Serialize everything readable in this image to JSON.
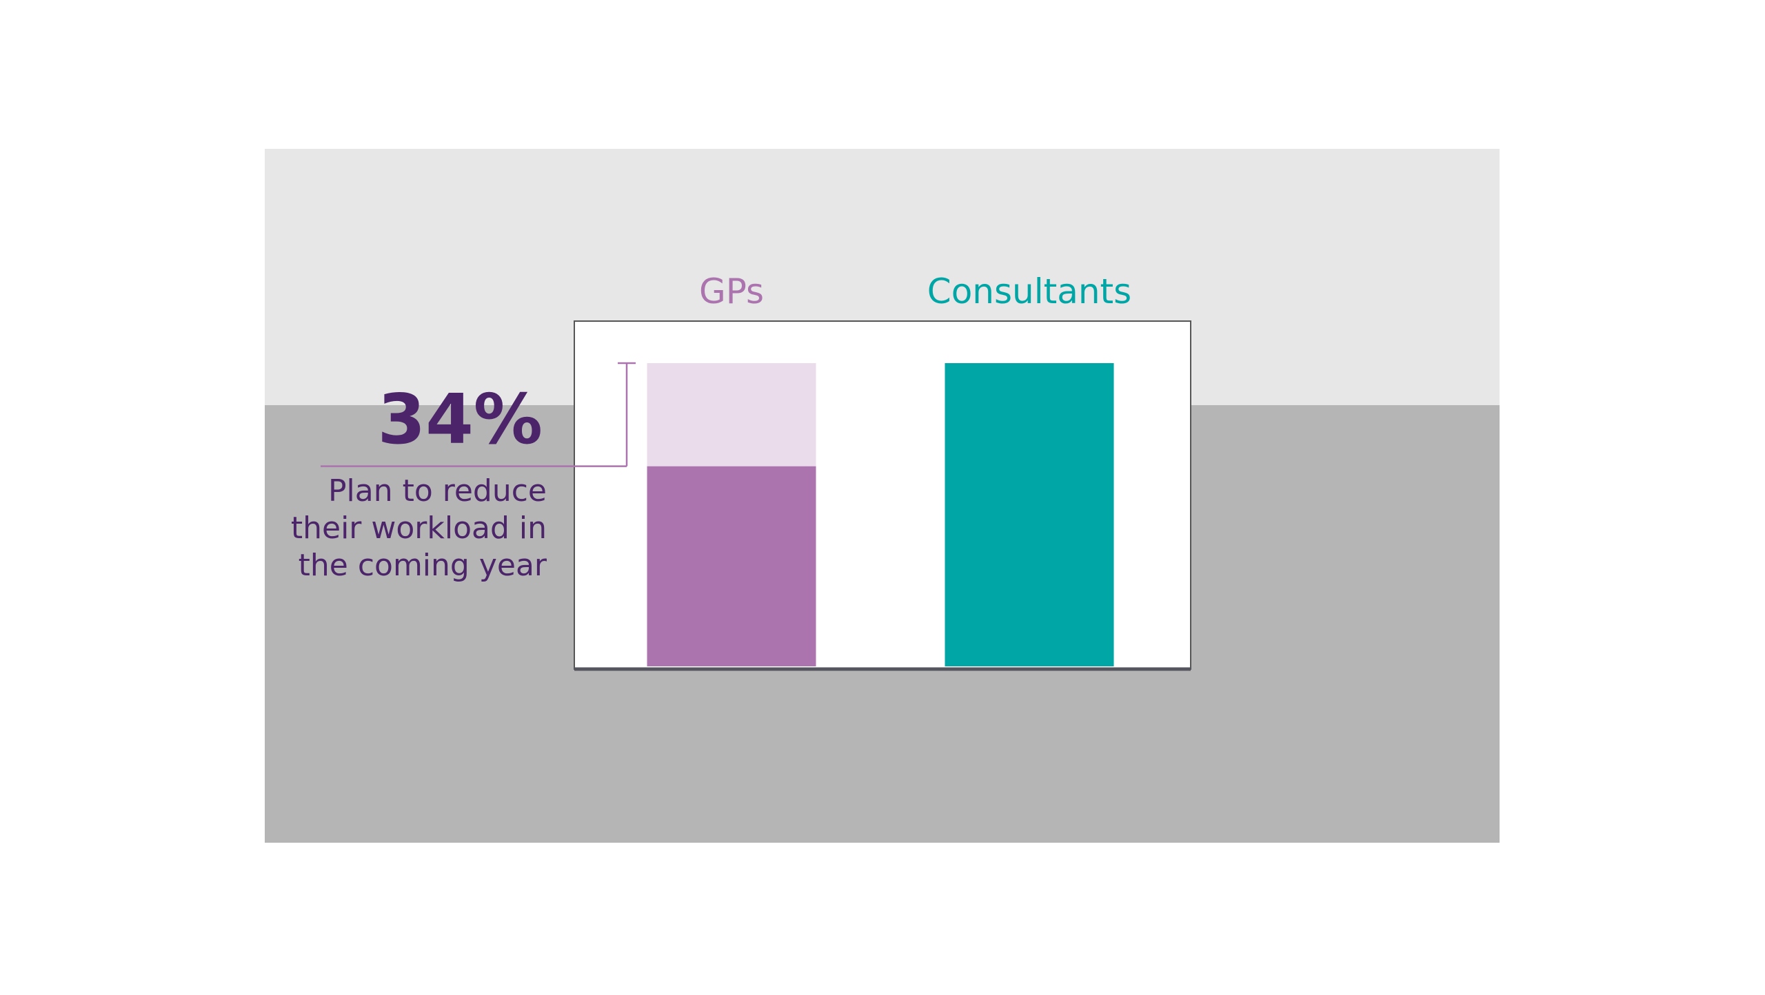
{
  "chart_data": {
    "type": "bar",
    "categories": [
      "GPs",
      "Consultants"
    ],
    "series": [
      {
        "colors": [
          "#ab74ae",
          "#00a5a5"
        ],
        "values": [
          66,
          100
        ]
      },
      {
        "color": "#eadcea",
        "values": [
          34,
          null
        ],
        "value_labels": [
          "34%",
          null
        ]
      }
    ],
    "annotation": [
      "Plan to reduce",
      "their workload in",
      "the coming year"
    ],
    "annotation_color": "#4b2469",
    "ylim": [
      0,
      100
    ]
  }
}
